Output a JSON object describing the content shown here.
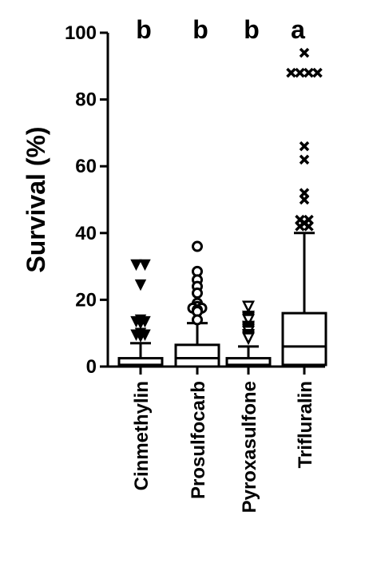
{
  "chart_data": {
    "type": "box",
    "ylabel": "Survival  (%)",
    "ylim": [
      0,
      100
    ],
    "yticks": [
      0,
      20,
      40,
      60,
      80,
      100
    ],
    "grid": false,
    "categories": [
      "Cinmethylin",
      "Prosulfocarb",
      "Pyroxasulfone",
      "Trifluralin"
    ],
    "significance": [
      "b",
      "b",
      "b",
      "a"
    ],
    "boxes": [
      {
        "name": "Cinmethylin",
        "min": 0,
        "q1": 0,
        "median": 0.5,
        "q3": 2.5,
        "whisker_high": 7,
        "marker": "triangle-down-filled",
        "outliers": [
          30.5,
          30.5,
          24.5,
          14,
          13.5,
          13.5,
          13,
          10,
          9.5,
          9.5,
          9
        ]
      },
      {
        "name": "Prosulfocarb",
        "min": 0,
        "q1": 0,
        "median": 2.5,
        "q3": 6.5,
        "whisker_high": 13,
        "marker": "circle-open",
        "outliers": [
          36,
          28.5,
          26,
          24,
          22,
          19,
          18,
          17.5,
          17.5,
          17,
          16.5,
          14
        ]
      },
      {
        "name": "Pyroxasulfone",
        "min": 0,
        "q1": 0,
        "median": 0.5,
        "q3": 2.5,
        "whisker_high": 6,
        "marker": "triangle-down-open",
        "outliers": [
          18,
          15,
          14.5,
          14,
          12,
          11.5,
          11,
          10.5,
          9.5,
          9,
          8.5
        ]
      },
      {
        "name": "Trifluralin",
        "min": 0,
        "q1": 0.5,
        "median": 6,
        "q3": 16,
        "whisker_high": 40,
        "marker": "x",
        "outliers": [
          94,
          88,
          88,
          88,
          88,
          66,
          62,
          52,
          50,
          44,
          44,
          43,
          42,
          42
        ]
      }
    ]
  }
}
